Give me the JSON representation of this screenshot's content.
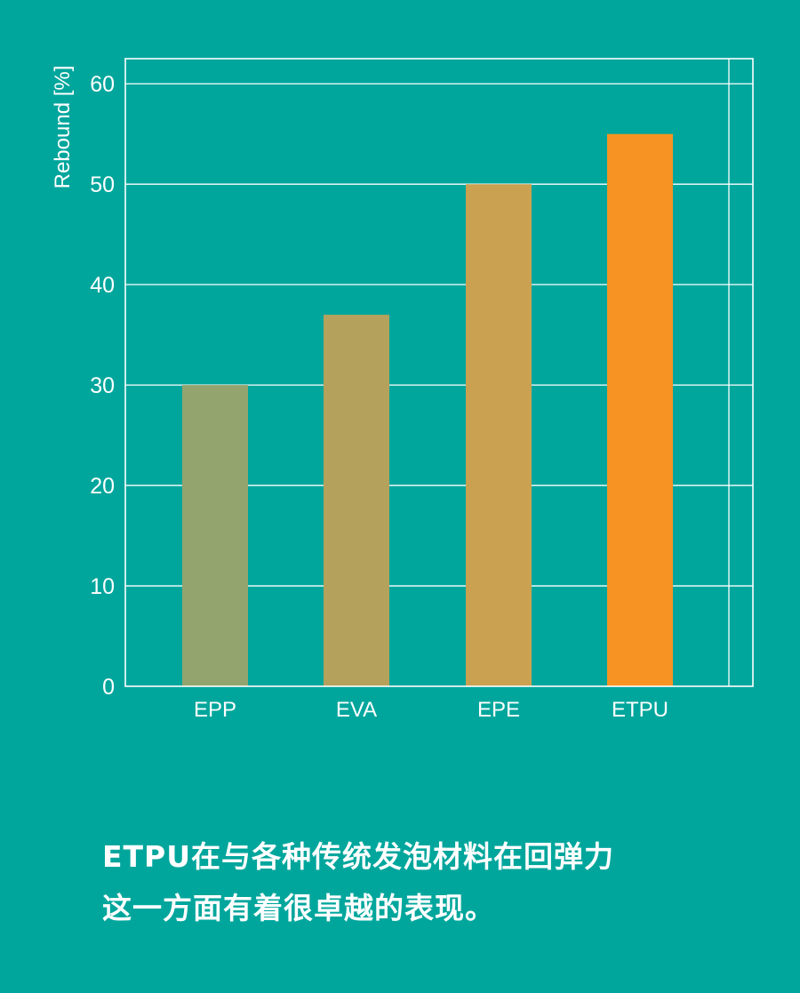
{
  "chart_data": {
    "type": "bar",
    "categories": [
      "EPP",
      "EVA",
      "EPE",
      "ETPU"
    ],
    "values": [
      30,
      37,
      50,
      55
    ],
    "ylabel": "Rebound [%]",
    "xlabel": "",
    "ylim": [
      0,
      62.5
    ],
    "yticks": [
      0,
      10,
      20,
      30,
      40,
      50,
      60
    ],
    "grid": true,
    "bar_colors": [
      "#93a46f",
      "#b4a15c",
      "#c9a151",
      "#f69322"
    ]
  },
  "caption": {
    "line1": "ETPU在与各种传统发泡材料在回弹力",
    "line2": "这一方面有着很卓越的表现。"
  },
  "colors": {
    "background": "#00a69c",
    "axis": "#ffffff"
  }
}
